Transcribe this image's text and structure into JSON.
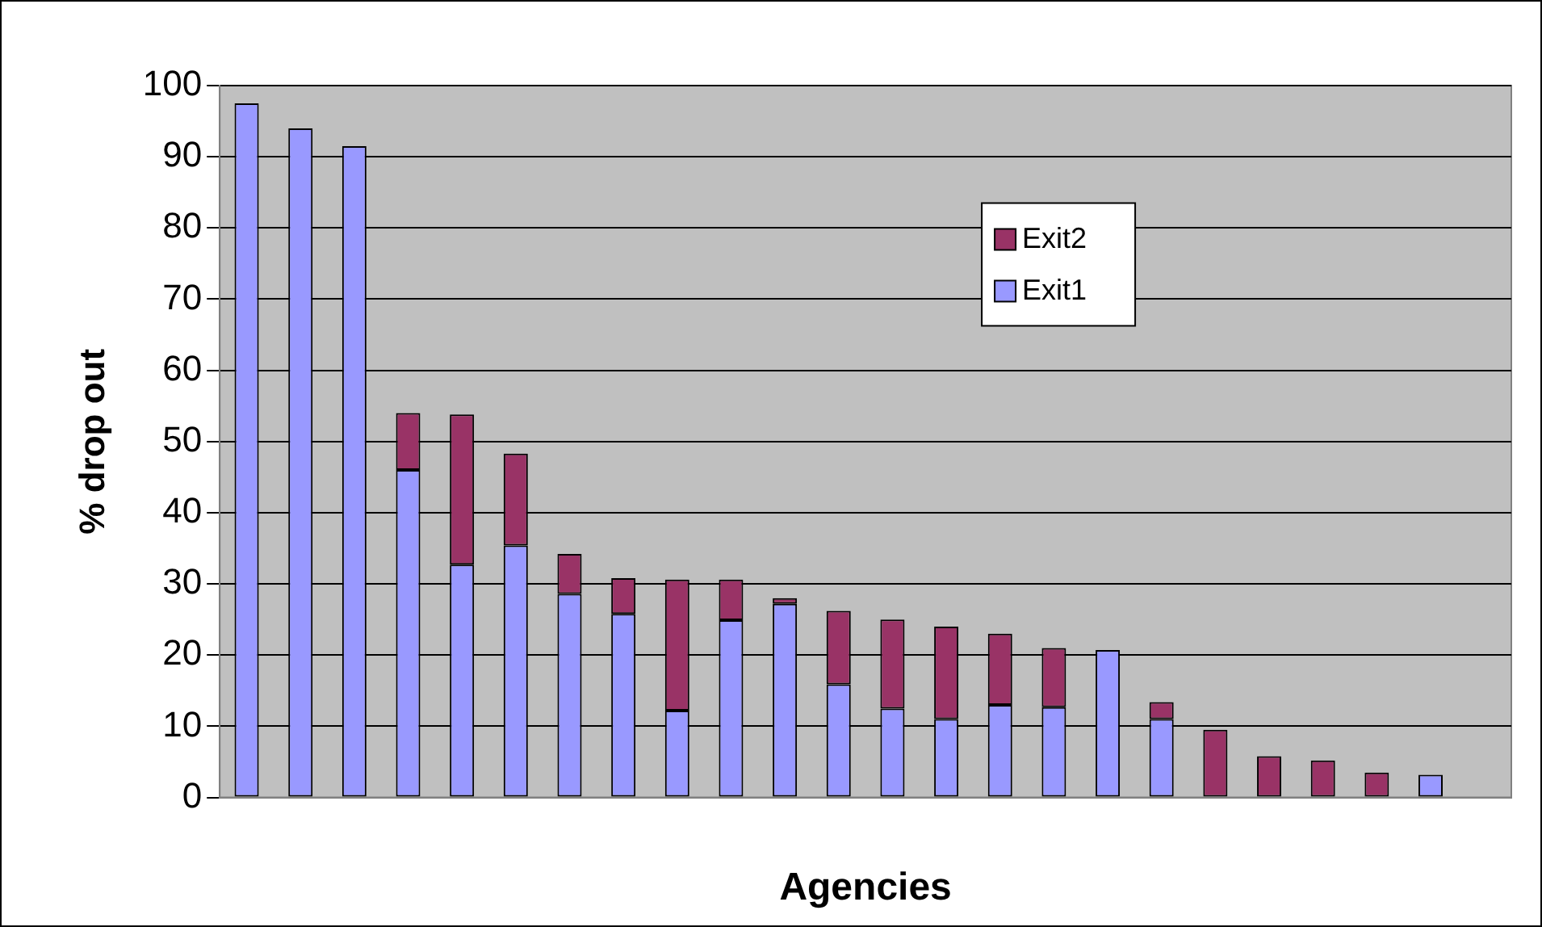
{
  "chart_data": {
    "type": "bar",
    "stacked": true,
    "xlabel": "Agencies",
    "ylabel": "% drop out",
    "categories": [
      null,
      null,
      null,
      null,
      null,
      null,
      null,
      null,
      null,
      null,
      null,
      null,
      null,
      null,
      null,
      null,
      null,
      null,
      null,
      null,
      null,
      null,
      null,
      null
    ],
    "series": [
      {
        "name": "Exit1",
        "color": "#9999ff",
        "values": [
          97.5,
          94,
          91.5,
          46,
          32.7,
          35.4,
          28.6,
          25.8,
          12.2,
          24.9,
          27.2,
          15.9,
          12.5,
          11,
          13,
          12.7,
          20.7,
          11,
          null,
          null,
          null,
          null,
          3.2,
          null
        ]
      },
      {
        "name": "Exit2",
        "color": "#993366",
        "values": [
          null,
          null,
          null,
          8,
          21.1,
          12.9,
          5.6,
          5,
          18.4,
          5.7,
          0.8,
          10.3,
          12.5,
          13,
          10,
          8.3,
          null,
          2.4,
          9.5,
          5.8,
          5.2,
          3.5,
          null,
          null
        ]
      }
    ],
    "ylim": [
      0,
      100
    ],
    "yticks": [
      0,
      10,
      20,
      30,
      40,
      50,
      60,
      70,
      80,
      90,
      100
    ],
    "grid": "y",
    "legend": "top right"
  }
}
